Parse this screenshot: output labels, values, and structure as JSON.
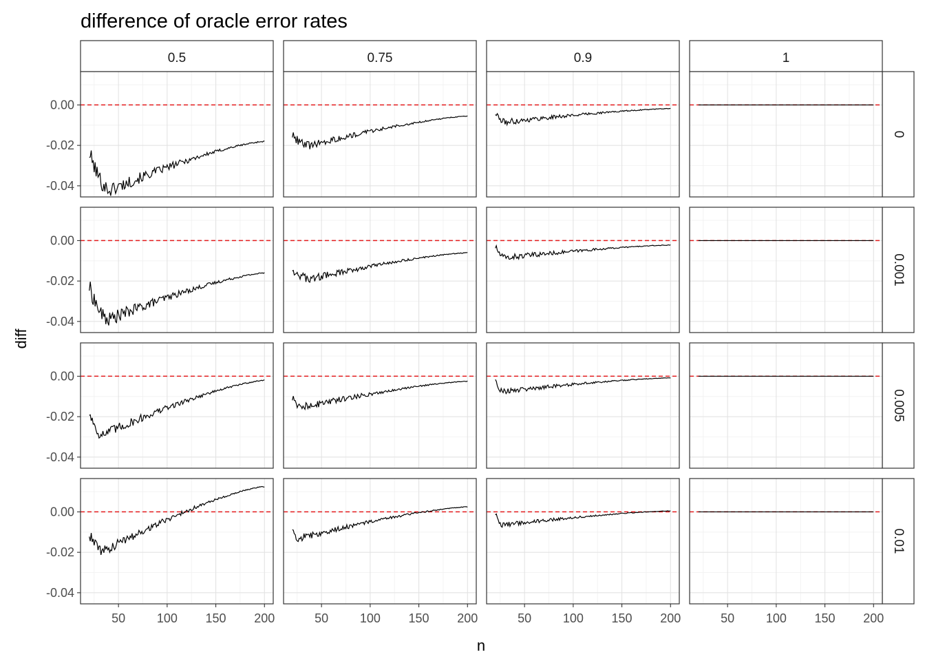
{
  "chart_data": {
    "type": "line",
    "title": "difference of oracle error rates",
    "xlabel": "n",
    "ylabel": "diff",
    "x_range": [
      20,
      200
    ],
    "xlim": [
      11,
      209
    ],
    "ylim": [
      -0.0455,
      0.0165
    ],
    "x_ticks": [
      50,
      100,
      150,
      200
    ],
    "y_ticks": [
      0.0,
      -0.02,
      -0.04
    ],
    "y_tick_labels": [
      "0.00",
      "-0.02",
      "-0.04"
    ],
    "grid": true,
    "reference_line": {
      "y": 0,
      "color": "#e41a1c",
      "style": "dashed"
    },
    "line_color": "#000000",
    "col_facet_labels": [
      "0.5",
      "0.75",
      "0.9",
      "1"
    ],
    "row_facet_labels": [
      "0",
      "0.001",
      "0.005",
      "0.01"
    ],
    "panels": [
      [
        {
          "start": -0.024,
          "end": -0.018,
          "min": -0.042,
          "min_at": 42,
          "noise": 0.004
        },
        {
          "start": -0.015,
          "end": -0.0055,
          "min": -0.02,
          "min_at": 38,
          "noise": 0.0022
        },
        {
          "start": -0.004,
          "end": -0.0018,
          "min": -0.0085,
          "min_at": 30,
          "noise": 0.0016
        },
        {
          "start": 0,
          "end": 0,
          "min": 0,
          "min_at": 50,
          "noise": 0
        }
      ],
      [
        {
          "start": -0.023,
          "end": -0.016,
          "min": -0.039,
          "min_at": 40,
          "noise": 0.0038
        },
        {
          "start": -0.014,
          "end": -0.006,
          "min": -0.019,
          "min_at": 38,
          "noise": 0.0022
        },
        {
          "start": -0.003,
          "end": -0.0022,
          "min": -0.0085,
          "min_at": 30,
          "noise": 0.0016
        },
        {
          "start": 0,
          "end": 0,
          "min": 0,
          "min_at": 50,
          "noise": 0
        }
      ],
      [
        {
          "start": -0.018,
          "end": -0.002,
          "min": -0.029,
          "min_at": 34,
          "noise": 0.003
        },
        {
          "start": -0.011,
          "end": -0.0025,
          "min": -0.0155,
          "min_at": 28,
          "noise": 0.002
        },
        {
          "start": -0.001,
          "end": -0.0008,
          "min": -0.0075,
          "min_at": 28,
          "noise": 0.0014
        },
        {
          "start": 0,
          "end": 0,
          "min": 0,
          "min_at": 50,
          "noise": 0
        }
      ],
      [
        {
          "start": -0.011,
          "end": 0.0125,
          "min": -0.0195,
          "min_at": 35,
          "noise": 0.0028
        },
        {
          "start": -0.008,
          "end": 0.0025,
          "min": -0.013,
          "min_at": 27,
          "noise": 0.0018
        },
        {
          "start": -0.001,
          "end": 0.0005,
          "min": -0.0065,
          "min_at": 27,
          "noise": 0.0012
        },
        {
          "start": 0,
          "end": 0,
          "min": 0,
          "min_at": 50,
          "noise": 0
        }
      ]
    ]
  }
}
